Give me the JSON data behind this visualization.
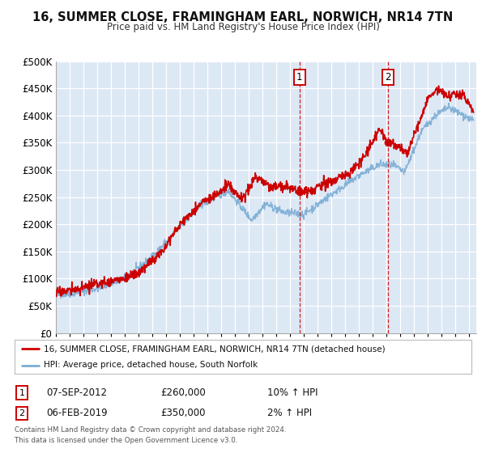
{
  "title": "16, SUMMER CLOSE, FRAMINGHAM EARL, NORWICH, NR14 7TN",
  "subtitle": "Price paid vs. HM Land Registry's House Price Index (HPI)",
  "ylim": [
    0,
    500000
  ],
  "yticks": [
    0,
    50000,
    100000,
    150000,
    200000,
    250000,
    300000,
    350000,
    400000,
    450000,
    500000
  ],
  "xlim_start": 1995.0,
  "xlim_end": 2025.5,
  "fig_bg_color": "#ffffff",
  "plot_bg_color": "#dde8f5",
  "grid_color": "#ffffff",
  "legend_label_red": "16, SUMMER CLOSE, FRAMINGHAM EARL, NORWICH, NR14 7TN (detached house)",
  "legend_label_blue": "HPI: Average price, detached house, South Norfolk",
  "sale1_x": 2012.68,
  "sale1_y": 260000,
  "sale2_x": 2019.09,
  "sale2_y": 350000,
  "sale1_date": "07-SEP-2012",
  "sale1_price": "£260,000",
  "sale1_hpi": "10% ↑ HPI",
  "sale2_date": "06-FEB-2019",
  "sale2_price": "£350,000",
  "sale2_hpi": "2% ↑ HPI",
  "footer_line1": "Contains HM Land Registry data © Crown copyright and database right 2024.",
  "footer_line2": "This data is licensed under the Open Government Licence v3.0.",
  "red_color": "#cc0000",
  "blue_color": "#7aadd4"
}
